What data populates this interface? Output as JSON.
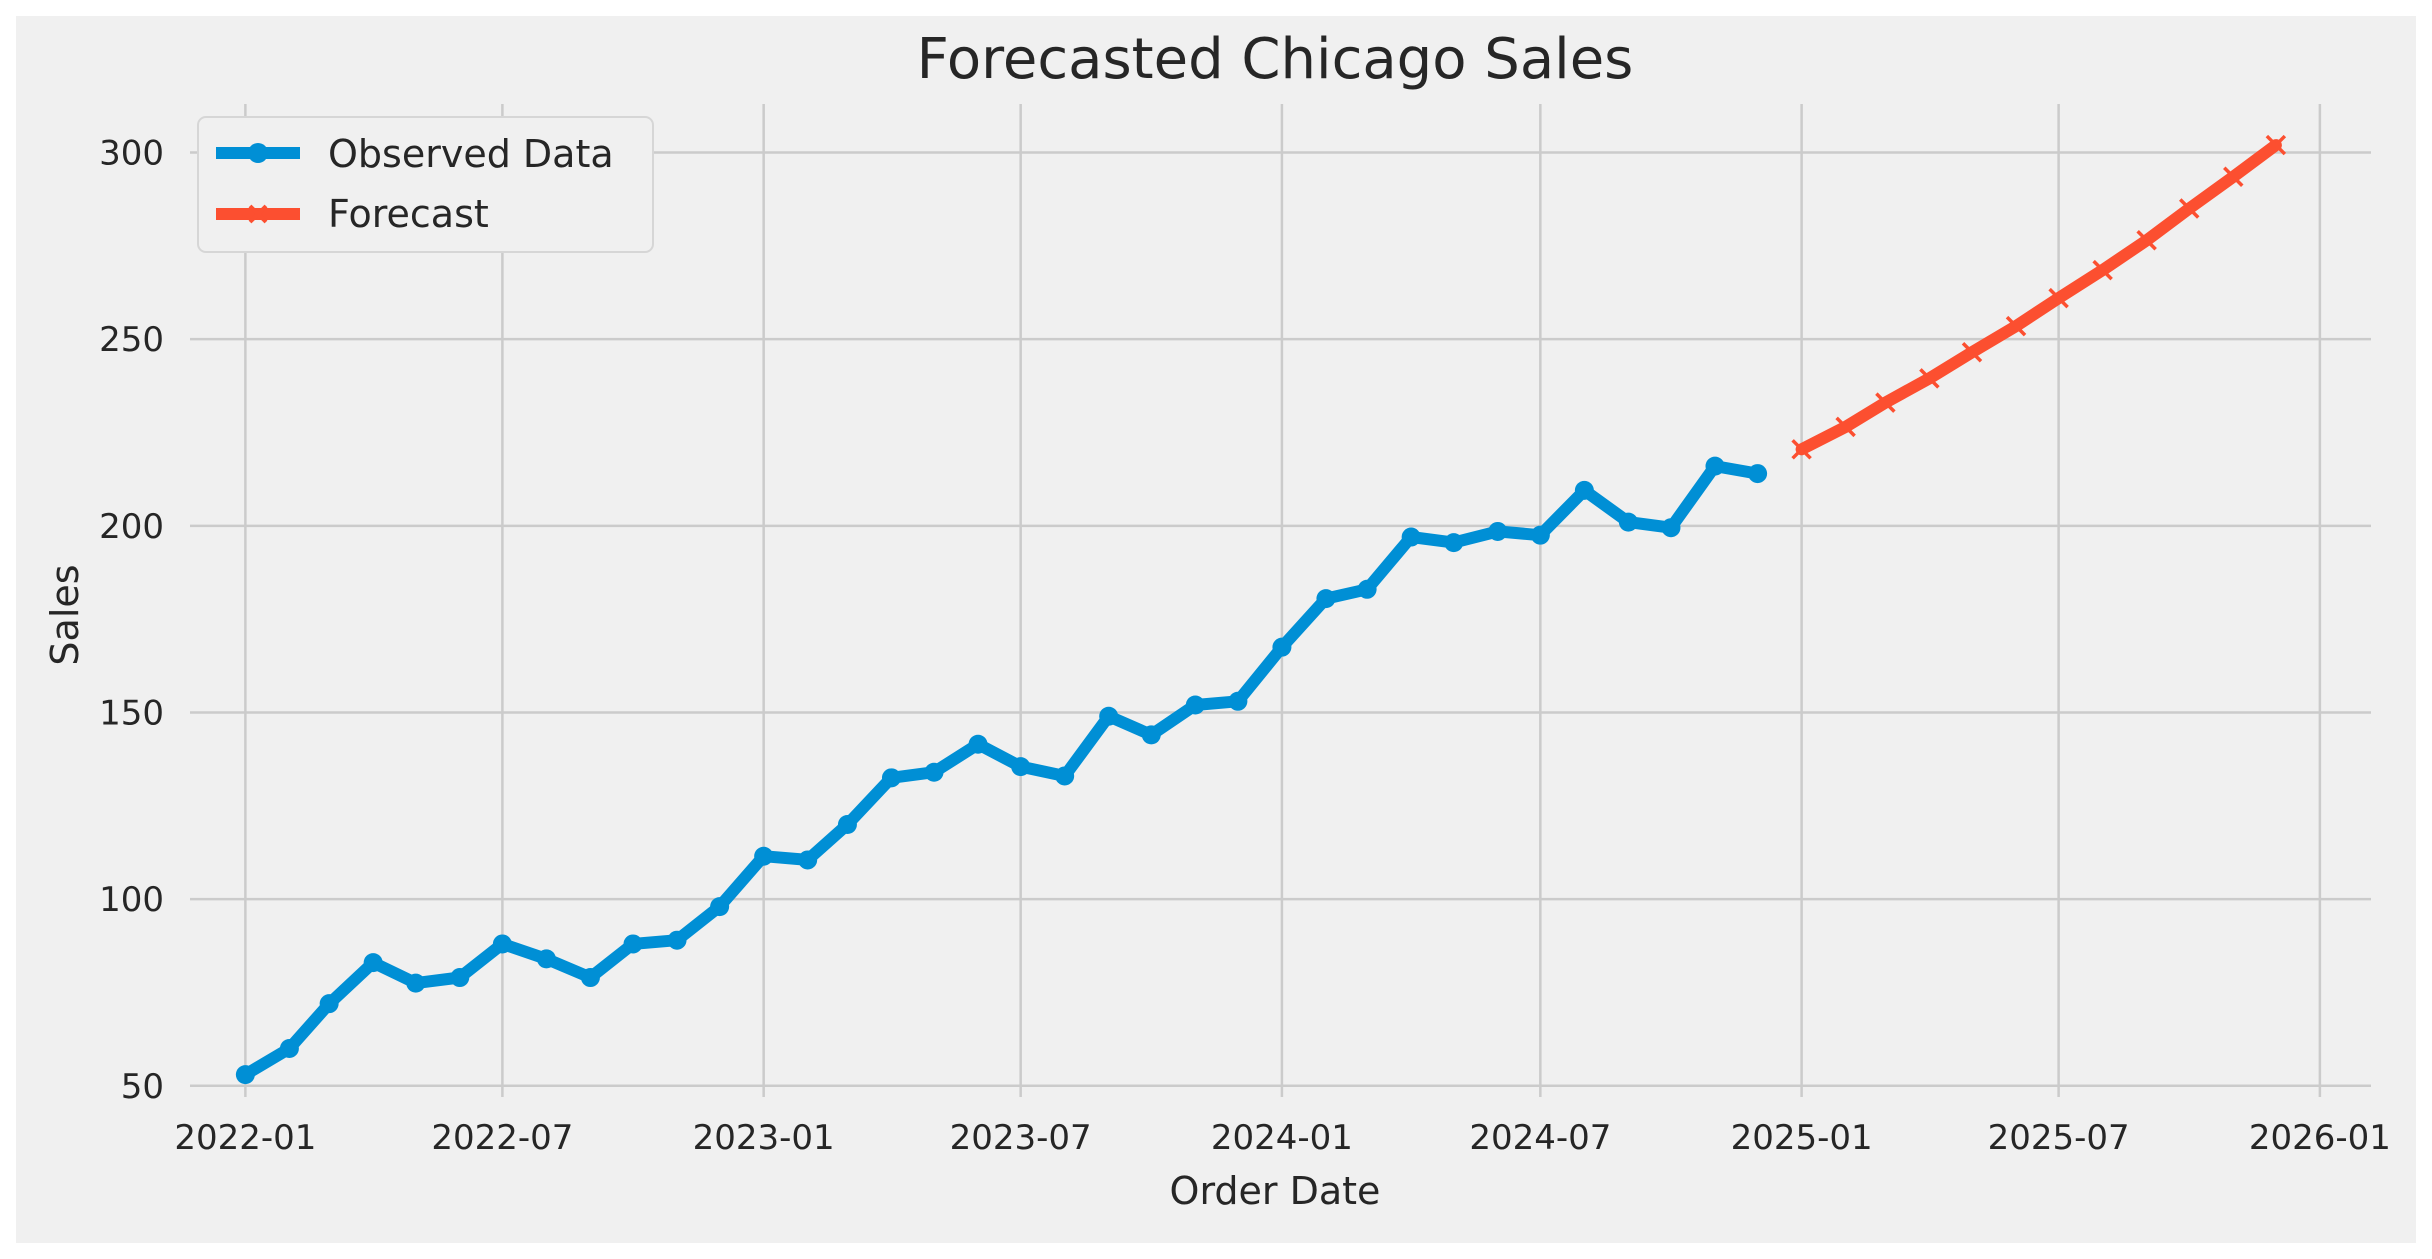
{
  "chart_data": {
    "type": "line",
    "title": "Forecasted Chicago Sales",
    "xlabel": "Order Date",
    "ylabel": "Sales",
    "x_ticks": [
      "2022-01",
      "2022-07",
      "2023-01",
      "2023-07",
      "2024-01",
      "2024-07",
      "2025-01",
      "2025-07",
      "2026-01"
    ],
    "y_ticks": [
      50,
      100,
      150,
      200,
      250,
      300
    ],
    "ylim": [
      47,
      313
    ],
    "xlim": [
      "2021-11-23",
      "2026-02-06"
    ],
    "grid": true,
    "legend_position": "top-left",
    "series": [
      {
        "name": "Observed Data",
        "color": "#008fd5",
        "marker": "circle",
        "x": [
          "2022-01-01",
          "2022-02-01",
          "2022-03-01",
          "2022-04-01",
          "2022-05-01",
          "2022-06-01",
          "2022-07-01",
          "2022-08-01",
          "2022-09-01",
          "2022-10-01",
          "2022-11-01",
          "2022-12-01",
          "2023-01-01",
          "2023-02-01",
          "2023-03-01",
          "2023-04-01",
          "2023-05-01",
          "2023-06-01",
          "2023-07-01",
          "2023-08-01",
          "2023-09-01",
          "2023-10-01",
          "2023-11-01",
          "2023-12-01",
          "2024-01-01",
          "2024-02-01",
          "2024-03-01",
          "2024-04-01",
          "2024-05-01",
          "2024-06-01",
          "2024-07-01",
          "2024-08-01",
          "2024-09-01",
          "2024-10-01",
          "2024-11-01",
          "2024-12-01"
        ],
        "y": [
          53,
          60,
          72,
          83,
          77.5,
          79,
          88,
          84,
          79,
          88,
          89,
          98,
          111.5,
          110.5,
          120,
          132.5,
          134,
          141.5,
          135.5,
          133,
          149,
          144,
          152,
          153,
          167.5,
          180.5,
          183,
          197,
          195.5,
          198.5,
          197.5,
          209.5,
          201,
          199.5,
          216,
          214
        ]
      },
      {
        "name": "Forecast",
        "color": "#fc4f30",
        "marker": "x",
        "x": [
          "2025-01-01",
          "2025-02-01",
          "2025-03-01",
          "2025-04-01",
          "2025-05-01",
          "2025-06-01",
          "2025-07-01",
          "2025-08-01",
          "2025-09-01",
          "2025-10-01",
          "2025-11-01",
          "2025-12-01"
        ],
        "y": [
          220.5,
          226.5,
          233,
          239.5,
          246.5,
          253.5,
          261,
          268.5,
          276.5,
          285,
          293.5,
          302
        ]
      }
    ]
  }
}
